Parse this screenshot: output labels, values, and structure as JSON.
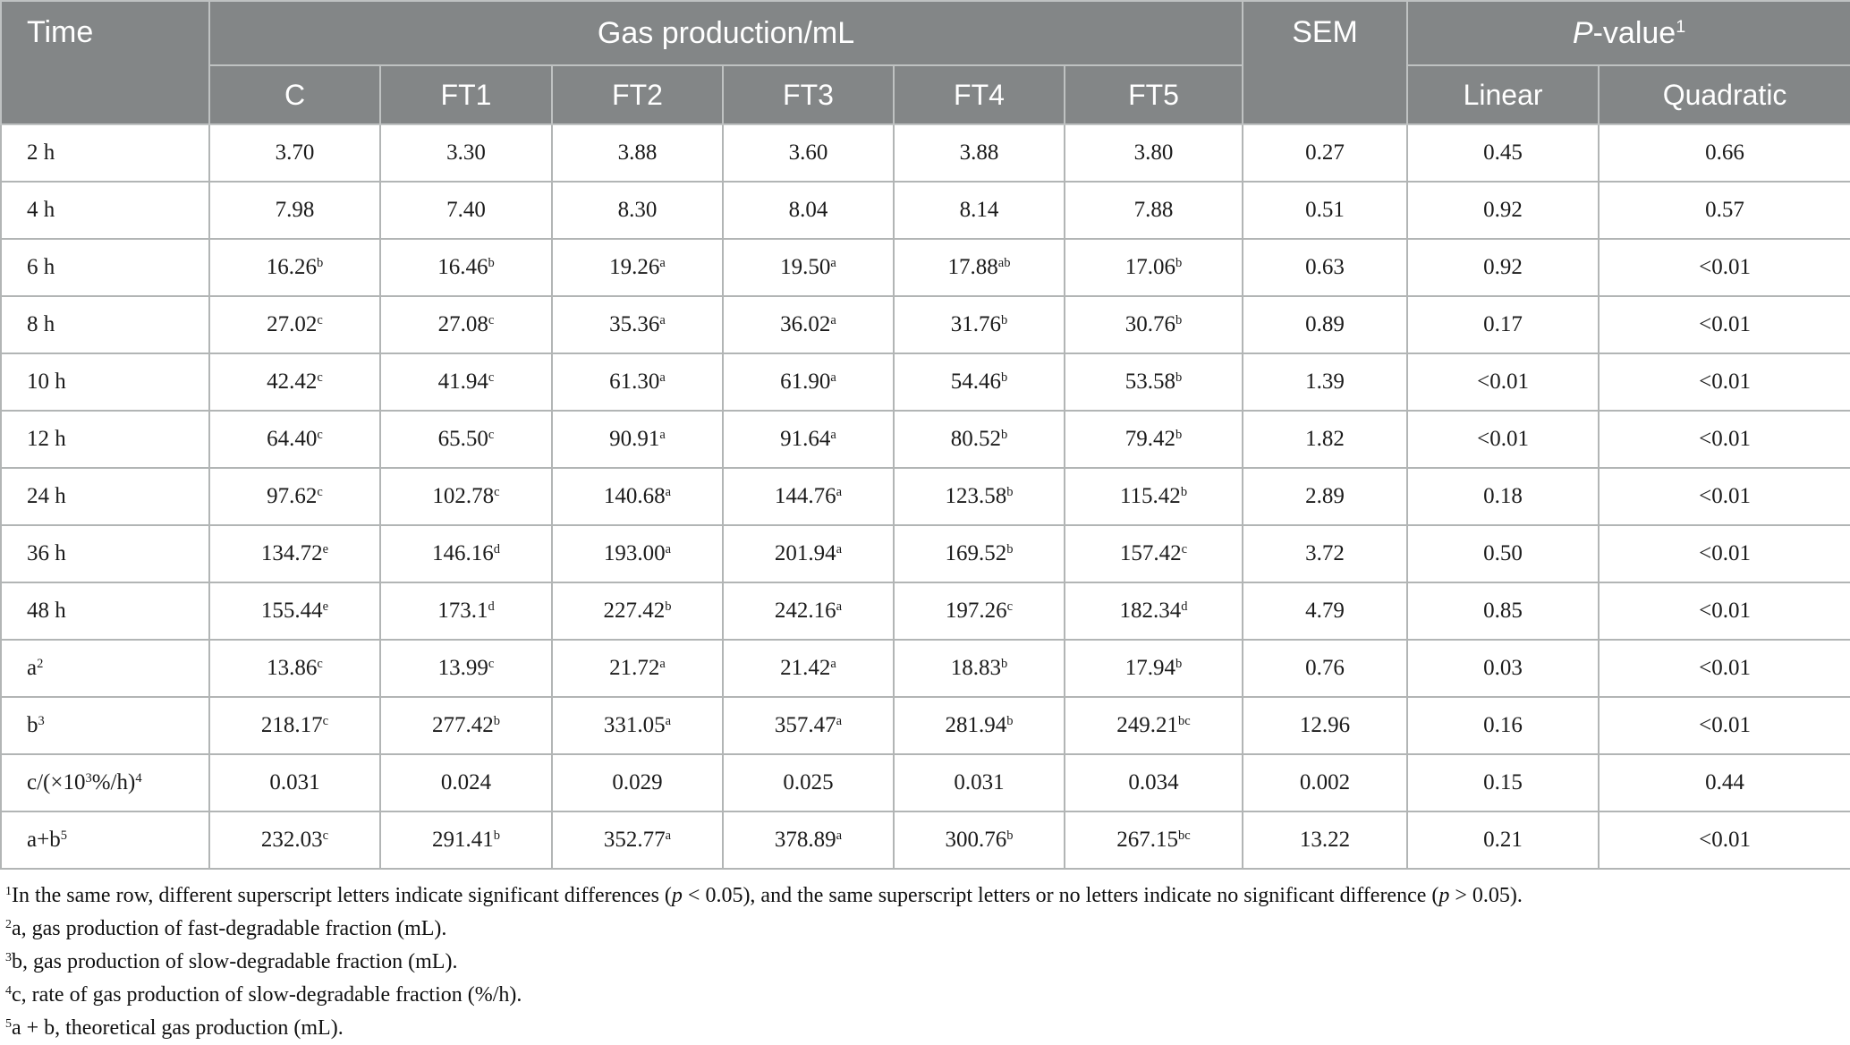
{
  "table": {
    "header": {
      "time": "Time",
      "gas_production": "Gas production/mL",
      "sem": "SEM",
      "pvalue": [
        {
          "i": "P"
        },
        "-value",
        {
          "sup": "1"
        }
      ],
      "treatments": [
        "C",
        "FT1",
        "FT2",
        "FT3",
        "FT4",
        "FT5"
      ],
      "pvalue_cols": [
        "Linear",
        "Quadratic"
      ]
    },
    "rows": [
      {
        "label": "2 h",
        "cells": [
          "3.70",
          "3.30",
          "3.88",
          "3.60",
          "3.88",
          "3.80",
          "0.27",
          "0.45",
          "0.66"
        ]
      },
      {
        "label": "4 h",
        "cells": [
          "7.98",
          "7.40",
          "8.30",
          "8.04",
          "8.14",
          "7.88",
          "0.51",
          "0.92",
          "0.57"
        ]
      },
      {
        "label": "6 h",
        "cells": [
          [
            "16.26",
            {
              "sup": "b"
            }
          ],
          [
            "16.46",
            {
              "sup": "b"
            }
          ],
          [
            "19.26",
            {
              "sup": "a"
            }
          ],
          [
            "19.50",
            {
              "sup": "a"
            }
          ],
          [
            "17.88",
            {
              "sup": "ab"
            }
          ],
          [
            "17.06",
            {
              "sup": "b"
            }
          ],
          "0.63",
          "0.92",
          "<0.01"
        ]
      },
      {
        "label": "8 h",
        "cells": [
          [
            "27.02",
            {
              "sup": "c"
            }
          ],
          [
            "27.08",
            {
              "sup": "c"
            }
          ],
          [
            "35.36",
            {
              "sup": "a"
            }
          ],
          [
            "36.02",
            {
              "sup": "a"
            }
          ],
          [
            "31.76",
            {
              "sup": "b"
            }
          ],
          [
            "30.76",
            {
              "sup": "b"
            }
          ],
          "0.89",
          "0.17",
          "<0.01"
        ]
      },
      {
        "label": "10 h",
        "cells": [
          [
            "42.42",
            {
              "sup": "c"
            }
          ],
          [
            "41.94",
            {
              "sup": "c"
            }
          ],
          [
            "61.30",
            {
              "sup": "a"
            }
          ],
          [
            "61.90",
            {
              "sup": "a"
            }
          ],
          [
            "54.46",
            {
              "sup": "b"
            }
          ],
          [
            "53.58",
            {
              "sup": "b"
            }
          ],
          "1.39",
          "<0.01",
          "<0.01"
        ]
      },
      {
        "label": "12 h",
        "cells": [
          [
            "64.40",
            {
              "sup": "c"
            }
          ],
          [
            "65.50",
            {
              "sup": "c"
            }
          ],
          [
            "90.91",
            {
              "sup": "a"
            }
          ],
          [
            "91.64",
            {
              "sup": "a"
            }
          ],
          [
            "80.52",
            {
              "sup": "b"
            }
          ],
          [
            "79.42",
            {
              "sup": "b"
            }
          ],
          "1.82",
          "<0.01",
          "<0.01"
        ]
      },
      {
        "label": "24 h",
        "cells": [
          [
            "97.62",
            {
              "sup": "c"
            }
          ],
          [
            "102.78",
            {
              "sup": "c"
            }
          ],
          [
            "140.68",
            {
              "sup": "a"
            }
          ],
          [
            "144.76",
            {
              "sup": "a"
            }
          ],
          [
            "123.58",
            {
              "sup": "b"
            }
          ],
          [
            "115.42",
            {
              "sup": "b"
            }
          ],
          "2.89",
          "0.18",
          "<0.01"
        ]
      },
      {
        "label": "36 h",
        "cells": [
          [
            "134.72",
            {
              "sup": "e"
            }
          ],
          [
            "146.16",
            {
              "sup": "d"
            }
          ],
          [
            "193.00",
            {
              "sup": "a"
            }
          ],
          [
            "201.94",
            {
              "sup": "a"
            }
          ],
          [
            "169.52",
            {
              "sup": "b"
            }
          ],
          [
            "157.42",
            {
              "sup": "c"
            }
          ],
          "3.72",
          "0.50",
          "<0.01"
        ]
      },
      {
        "label": "48 h",
        "cells": [
          [
            "155.44",
            {
              "sup": "e"
            }
          ],
          [
            "173.1",
            {
              "sup": "d"
            }
          ],
          [
            "227.42",
            {
              "sup": "b"
            }
          ],
          [
            "242.16",
            {
              "sup": "a"
            }
          ],
          [
            "197.26",
            {
              "sup": "c"
            }
          ],
          [
            "182.34",
            {
              "sup": "d"
            }
          ],
          "4.79",
          "0.85",
          "<0.01"
        ]
      },
      {
        "label": [
          "a",
          {
            "sup": "2"
          }
        ],
        "cells": [
          [
            "13.86",
            {
              "sup": "c"
            }
          ],
          [
            "13.99",
            {
              "sup": "c"
            }
          ],
          [
            "21.72",
            {
              "sup": "a"
            }
          ],
          [
            "21.42",
            {
              "sup": "a"
            }
          ],
          [
            "18.83",
            {
              "sup": "b"
            }
          ],
          [
            "17.94",
            {
              "sup": "b"
            }
          ],
          "0.76",
          "0.03",
          "<0.01"
        ]
      },
      {
        "label": [
          "b",
          {
            "sup": "3"
          }
        ],
        "cells": [
          [
            "218.17",
            {
              "sup": "c"
            }
          ],
          [
            "277.42",
            {
              "sup": "b"
            }
          ],
          [
            "331.05",
            {
              "sup": "a"
            }
          ],
          [
            "357.47",
            {
              "sup": "a"
            }
          ],
          [
            "281.94",
            {
              "sup": "b"
            }
          ],
          [
            "249.21",
            {
              "sup": "bc"
            }
          ],
          "12.96",
          "0.16",
          "<0.01"
        ]
      },
      {
        "label": [
          "c/(×10",
          {
            "sup": "3"
          },
          "%/h)",
          {
            "sup": "4"
          }
        ],
        "cells": [
          "0.031",
          "0.024",
          "0.029",
          "0.025",
          "0.031",
          "0.034",
          "0.002",
          "0.15",
          "0.44"
        ]
      },
      {
        "label": [
          "a+b",
          {
            "sup": "5"
          }
        ],
        "cells": [
          [
            "232.03",
            {
              "sup": "c"
            }
          ],
          [
            "291.41",
            {
              "sup": "b"
            }
          ],
          [
            "352.77",
            {
              "sup": "a"
            }
          ],
          [
            "378.89",
            {
              "sup": "a"
            }
          ],
          [
            "300.76",
            {
              "sup": "b"
            }
          ],
          [
            "267.15",
            {
              "sup": "bc"
            }
          ],
          "13.22",
          "0.21",
          "<0.01"
        ]
      }
    ]
  },
  "footnotes": [
    [
      {
        "sup": "1"
      },
      "In the same row, different superscript letters indicate significant differences (",
      {
        "i": "p"
      },
      " < 0.05), and the same superscript letters or no letters indicate no significant difference (",
      {
        "i": "p"
      },
      " > 0.05)."
    ],
    [
      {
        "sup": "2"
      },
      "a, gas production of fast-degradable fraction (mL)."
    ],
    [
      {
        "sup": "3"
      },
      "b, gas production of slow-degradable fraction (mL)."
    ],
    [
      {
        "sup": "4"
      },
      "c, rate of gas production of slow-degradable fraction (%/h)."
    ],
    [
      {
        "sup": "5"
      },
      "a + b, theoretical gas production (mL)."
    ]
  ]
}
